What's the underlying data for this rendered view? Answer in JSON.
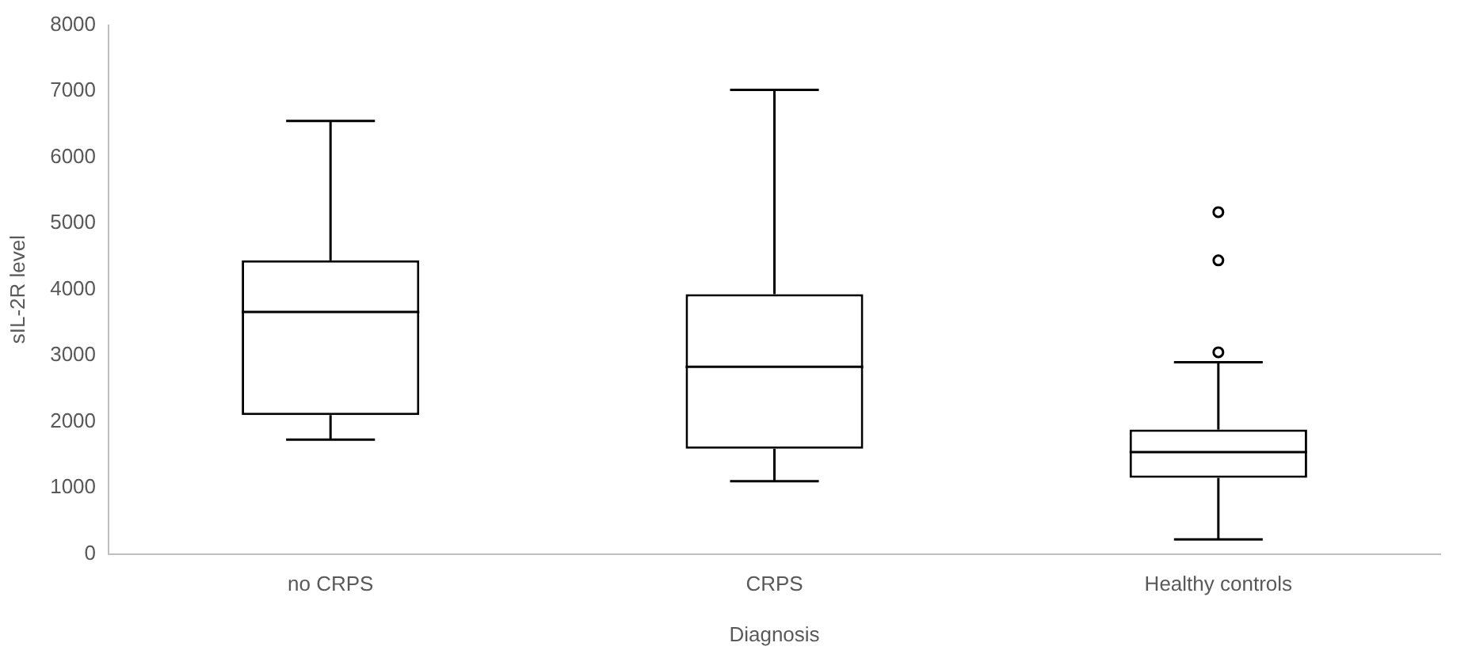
{
  "chart_data": {
    "type": "box",
    "xlabel": "Diagnosis",
    "ylabel": "sIL-2R level",
    "categories": [
      "no CRPS",
      "CRPS",
      "Healthy controls"
    ],
    "boxes": [
      {
        "low": 1730,
        "q1": 2100,
        "median": 3660,
        "q3": 4440,
        "high": 6550
      },
      {
        "low": 1100,
        "q1": 1590,
        "median": 2830,
        "q3": 3930,
        "high": 7020
      },
      {
        "low": 220,
        "q1": 1150,
        "median": 1540,
        "q3": 1880,
        "high": 2900,
        "outliers": [
          3050,
          4440,
          5170
        ]
      }
    ],
    "ylim": [
      0,
      8000
    ],
    "yticks": [
      0,
      1000,
      2000,
      3000,
      4000,
      5000,
      6000,
      7000,
      8000
    ],
    "grid": false,
    "marker": "circle"
  }
}
